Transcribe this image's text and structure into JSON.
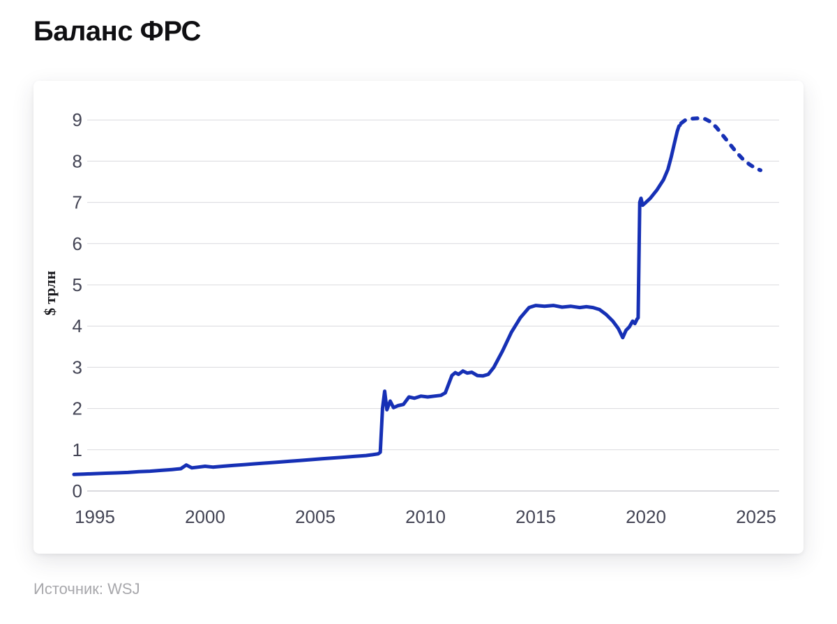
{
  "title": "Баланс ФРС",
  "source": "Источник: WSJ",
  "colors": {
    "line": "#1630b5",
    "grid": "#d9d9de",
    "zero_line": "#c3c3ca",
    "tick_label": "#434454",
    "title_text": "#0f0f12",
    "source_text": "#a7a7ab"
  },
  "chart_data": {
    "type": "line",
    "title": "Баланс ФРС",
    "xlabel": "",
    "ylabel": "$ трлн",
    "unit": "$ трлн",
    "x_ticks": [
      1995,
      2000,
      2005,
      2010,
      2015,
      2020,
      2025
    ],
    "y_ticks": [
      0,
      1,
      2,
      3,
      4,
      5,
      6,
      7,
      8,
      9
    ],
    "xlim": [
      1994.0,
      2026.1
    ],
    "ylim": [
      0,
      9.6
    ],
    "grid": "horizontal",
    "legend": "none",
    "series": [
      {
        "id": "actual",
        "line_style": "solid",
        "points": [
          [
            1994.05,
            0.4
          ],
          [
            1994.5,
            0.41
          ],
          [
            1995.0,
            0.42
          ],
          [
            1995.5,
            0.43
          ],
          [
            1996.0,
            0.44
          ],
          [
            1996.5,
            0.45
          ],
          [
            1997.0,
            0.47
          ],
          [
            1997.5,
            0.48
          ],
          [
            1998.0,
            0.5
          ],
          [
            1998.5,
            0.52
          ],
          [
            1998.9,
            0.54
          ],
          [
            1999.15,
            0.63
          ],
          [
            1999.4,
            0.56
          ],
          [
            1999.7,
            0.58
          ],
          [
            2000.0,
            0.6
          ],
          [
            2000.35,
            0.58
          ],
          [
            2000.8,
            0.6
          ],
          [
            2001.3,
            0.62
          ],
          [
            2001.8,
            0.64
          ],
          [
            2002.3,
            0.66
          ],
          [
            2002.8,
            0.68
          ],
          [
            2003.3,
            0.7
          ],
          [
            2003.8,
            0.72
          ],
          [
            2004.3,
            0.74
          ],
          [
            2004.8,
            0.76
          ],
          [
            2005.3,
            0.78
          ],
          [
            2005.8,
            0.8
          ],
          [
            2006.3,
            0.82
          ],
          [
            2006.8,
            0.84
          ],
          [
            2007.3,
            0.86
          ],
          [
            2007.6,
            0.88
          ],
          [
            2007.85,
            0.9
          ],
          [
            2007.95,
            0.94
          ],
          [
            2008.05,
            2.0
          ],
          [
            2008.15,
            2.42
          ],
          [
            2008.25,
            1.97
          ],
          [
            2008.4,
            2.18
          ],
          [
            2008.55,
            2.02
          ],
          [
            2008.75,
            2.07
          ],
          [
            2009.0,
            2.1
          ],
          [
            2009.25,
            2.28
          ],
          [
            2009.5,
            2.25
          ],
          [
            2009.8,
            2.3
          ],
          [
            2010.1,
            2.28
          ],
          [
            2010.4,
            2.3
          ],
          [
            2010.7,
            2.32
          ],
          [
            2010.9,
            2.38
          ],
          [
            2011.2,
            2.8
          ],
          [
            2011.35,
            2.87
          ],
          [
            2011.5,
            2.83
          ],
          [
            2011.7,
            2.91
          ],
          [
            2011.9,
            2.86
          ],
          [
            2012.1,
            2.88
          ],
          [
            2012.35,
            2.8
          ],
          [
            2012.6,
            2.79
          ],
          [
            2012.85,
            2.83
          ],
          [
            2013.1,
            3.0
          ],
          [
            2013.5,
            3.4
          ],
          [
            2013.9,
            3.85
          ],
          [
            2014.3,
            4.2
          ],
          [
            2014.7,
            4.45
          ],
          [
            2015.0,
            4.5
          ],
          [
            2015.4,
            4.48
          ],
          [
            2015.8,
            4.5
          ],
          [
            2016.2,
            4.46
          ],
          [
            2016.6,
            4.48
          ],
          [
            2017.0,
            4.45
          ],
          [
            2017.3,
            4.47
          ],
          [
            2017.6,
            4.45
          ],
          [
            2017.9,
            4.4
          ],
          [
            2018.2,
            4.28
          ],
          [
            2018.5,
            4.12
          ],
          [
            2018.75,
            3.94
          ],
          [
            2018.95,
            3.72
          ],
          [
            2019.1,
            3.9
          ],
          [
            2019.25,
            3.98
          ],
          [
            2019.4,
            4.12
          ],
          [
            2019.5,
            4.06
          ],
          [
            2019.6,
            4.17
          ],
          [
            2019.65,
            4.2
          ],
          [
            2019.72,
            7.0
          ],
          [
            2019.78,
            7.1
          ],
          [
            2019.85,
            6.93
          ],
          [
            2020.0,
            7.0
          ],
          [
            2020.2,
            7.1
          ],
          [
            2020.5,
            7.3
          ],
          [
            2020.8,
            7.55
          ],
          [
            2021.0,
            7.8
          ],
          [
            2021.15,
            8.1
          ],
          [
            2021.3,
            8.45
          ],
          [
            2021.42,
            8.72
          ],
          [
            2021.5,
            8.85
          ],
          [
            2021.55,
            8.87
          ]
        ]
      },
      {
        "id": "projection",
        "line_style": "dashed",
        "points": [
          [
            2021.6,
            8.92
          ],
          [
            2021.8,
            9.0
          ],
          [
            2022.1,
            9.03
          ],
          [
            2022.4,
            9.04
          ],
          [
            2022.7,
            9.02
          ],
          [
            2022.95,
            8.95
          ],
          [
            2023.2,
            8.82
          ],
          [
            2023.5,
            8.62
          ],
          [
            2023.8,
            8.42
          ],
          [
            2024.1,
            8.22
          ],
          [
            2024.4,
            8.05
          ],
          [
            2024.7,
            7.92
          ],
          [
            2025.0,
            7.82
          ],
          [
            2025.2,
            7.78
          ]
        ]
      }
    ]
  }
}
